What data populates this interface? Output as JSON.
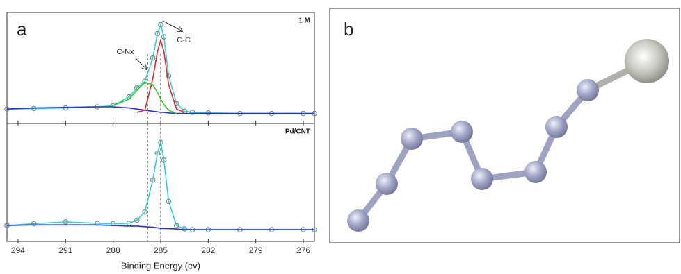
{
  "panel_labels": [
    "a",
    "b"
  ],
  "chart_data": [
    {
      "type": "line",
      "label": "1 M",
      "xlim": [
        294.7,
        275.3
      ],
      "ylim": [
        0,
        1
      ],
      "xticks": [
        294,
        291,
        288,
        285,
        282,
        279,
        276
      ],
      "annotations": [
        "C-Nx",
        "C-C"
      ],
      "vlines": [
        285.83,
        285.0
      ],
      "x": [
        294.7,
        293,
        291,
        289,
        288,
        287,
        286.5,
        286,
        285.5,
        285.2,
        285,
        284.8,
        284.5,
        284,
        283.5,
        283,
        282,
        280,
        278,
        276,
        275.3
      ],
      "series": [
        {
          "color": "#2dd4d4",
          "marker_color": "#6f8f8f",
          "values": [
            0.13,
            0.135,
            0.14,
            0.15,
            0.16,
            0.24,
            0.32,
            0.38,
            0.59,
            0.81,
            0.89,
            0.78,
            0.43,
            0.18,
            0.11,
            0.1,
            0.095,
            0.09,
            0.09,
            0.09,
            0.09
          ]
        },
        {
          "color": "#2233dd",
          "values": [
            0.13,
            0.14,
            0.145,
            0.15,
            0.15,
            0.14,
            0.13,
            0.12,
            0.11,
            0.105,
            0.1,
            0.1,
            0.095,
            0.09,
            0.09,
            0.09,
            0.09,
            0.09,
            0.09,
            0.09,
            0.09
          ]
        },
        {
          "color": "#ee2222",
          "values": [
            null,
            null,
            null,
            null,
            null,
            null,
            0.1,
            0.12,
            0.4,
            0.65,
            0.75,
            0.65,
            0.35,
            0.13,
            0.1,
            null,
            null,
            null,
            null,
            null,
            null
          ]
        },
        {
          "color": "#33cc22",
          "values": [
            null,
            null,
            null,
            null,
            0.16,
            0.22,
            0.3,
            0.37,
            0.35,
            0.28,
            0.22,
            0.17,
            0.12,
            0.09,
            null,
            null,
            null,
            null,
            null,
            null,
            null
          ]
        }
      ]
    },
    {
      "type": "line",
      "label": "Pd/CNT",
      "xlabel": "Binding Energy (ev)",
      "xlim": [
        294.7,
        275.3
      ],
      "ylim": [
        0,
        1
      ],
      "xticks": [
        294,
        291,
        288,
        285,
        282,
        279,
        276
      ],
      "vlines": [
        285.83,
        285.0
      ],
      "x": [
        294.7,
        293,
        291,
        289,
        288,
        287,
        286.5,
        286,
        285.5,
        285.2,
        285,
        284.8,
        284.5,
        284,
        283.5,
        283,
        282,
        280,
        278,
        276,
        275.3
      ],
      "series": [
        {
          "color": "#2dd4d4",
          "marker_color": "#6f8f8f",
          "values": [
            0.135,
            0.15,
            0.165,
            0.153,
            0.15,
            0.153,
            0.18,
            0.25,
            0.52,
            0.75,
            0.84,
            0.69,
            0.34,
            0.135,
            0.106,
            0.1,
            0.1,
            0.1,
            0.1,
            0.1,
            0.1
          ]
        },
        {
          "color": "#2233dd",
          "values": [
            0.135,
            0.14,
            0.14,
            0.14,
            0.135,
            0.13,
            0.13,
            0.125,
            0.12,
            0.115,
            0.11,
            0.11,
            0.108,
            0.105,
            0.1,
            0.1,
            0.1,
            0.1,
            0.1,
            0.1,
            0.1
          ]
        }
      ]
    }
  ]
}
